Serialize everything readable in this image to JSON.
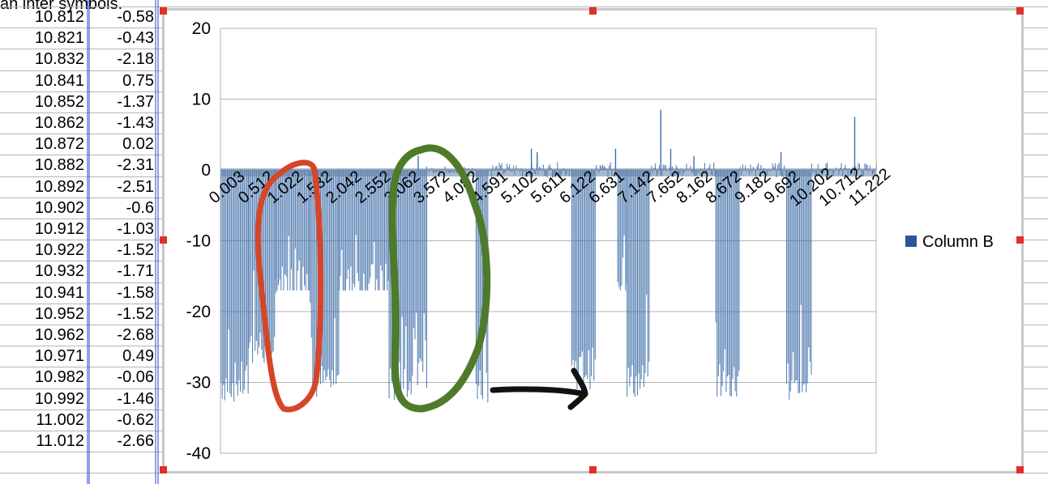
{
  "spreadsheet": {
    "top_text": "an inter symbols.",
    "rows": [
      {
        "a": "10.812",
        "b": "-0.58"
      },
      {
        "a": "10.821",
        "b": "-0.43"
      },
      {
        "a": "10.832",
        "b": "-2.18"
      },
      {
        "a": "10.841",
        "b": "0.75"
      },
      {
        "a": "10.852",
        "b": "-1.37"
      },
      {
        "a": "10.862",
        "b": "-1.43"
      },
      {
        "a": "10.872",
        "b": "0.02"
      },
      {
        "a": "10.882",
        "b": "-2.31"
      },
      {
        "a": "10.892",
        "b": "-2.51"
      },
      {
        "a": "10.902",
        "b": "-0.6"
      },
      {
        "a": "10.912",
        "b": "-1.03"
      },
      {
        "a": "10.922",
        "b": "-1.52"
      },
      {
        "a": "10.932",
        "b": "-1.71"
      },
      {
        "a": "10.941",
        "b": "-1.58"
      },
      {
        "a": "10.952",
        "b": "-1.52"
      },
      {
        "a": "10.962",
        "b": "-2.68"
      },
      {
        "a": "10.971",
        "b": "0.49"
      },
      {
        "a": "10.982",
        "b": "-0.06"
      },
      {
        "a": "10.992",
        "b": "-1.46"
      },
      {
        "a": "11.002",
        "b": "-0.62"
      },
      {
        "a": "11.012",
        "b": "-2.66"
      }
    ]
  },
  "chart_data": {
    "type": "bar",
    "title": "",
    "xlabel": "",
    "ylabel": "",
    "ylim": [
      -40,
      20
    ],
    "yticks": [
      20,
      10,
      0,
      -10,
      -20,
      -30,
      -40
    ],
    "grid": "horizontal",
    "legend": {
      "position": "right",
      "entries": [
        "Column B"
      ]
    },
    "series": [
      {
        "name": "Column B",
        "color": "#3f6fa8"
      }
    ],
    "x_tick_labels": [
      "0.003",
      "0.512",
      "1.022",
      "1.532",
      "2.042",
      "2.552",
      "3.062",
      "3.572",
      "4.082",
      "4.591",
      "5.102",
      "5.611",
      "6.122",
      "6.631",
      "7.142",
      "7.652",
      "8.162",
      "8.672",
      "9.182",
      "9.692",
      "10.202",
      "10.712",
      "11.222"
    ],
    "segments": [
      {
        "x_start": 0.003,
        "x_end": 0.48,
        "approx_min": -33,
        "approx_typical": -30
      },
      {
        "x_start": 0.48,
        "x_end": 0.95,
        "approx_min": -30,
        "approx_typical": -25
      },
      {
        "x_start": 0.95,
        "x_end": 1.54,
        "approx_min": -17,
        "approx_typical": -16
      },
      {
        "x_start": 1.54,
        "x_end": 2.04,
        "approx_min": -32,
        "approx_typical": -30
      },
      {
        "x_start": 2.04,
        "x_end": 2.9,
        "approx_min": -17,
        "approx_typical": -16
      },
      {
        "x_start": 2.9,
        "x_end": 3.55,
        "approx_min": -33,
        "approx_typical": -30
      },
      {
        "x_start": 3.55,
        "x_end": 4.4,
        "approx_min": -1,
        "approx_typical": 0.5
      },
      {
        "x_start": 4.4,
        "x_end": 4.62,
        "approx_min": -33,
        "approx_typical": -30
      },
      {
        "x_start": 4.62,
        "x_end": 6.05,
        "approx_min": -1,
        "approx_typical": 1
      },
      {
        "x_start": 6.05,
        "x_end": 6.47,
        "approx_min": -31,
        "approx_typical": -28
      },
      {
        "x_start": 6.47,
        "x_end": 6.84,
        "approx_min": -1,
        "approx_typical": 1
      },
      {
        "x_start": 6.84,
        "x_end": 7.0,
        "approx_min": -17,
        "approx_typical": -15
      },
      {
        "x_start": 7.0,
        "x_end": 7.4,
        "approx_min": -32,
        "approx_typical": -30
      },
      {
        "x_start": 7.4,
        "x_end": 8.53,
        "approx_min": -1,
        "approx_typical": 1
      },
      {
        "x_start": 8.53,
        "x_end": 8.95,
        "approx_min": -32,
        "approx_typical": -30
      },
      {
        "x_start": 8.95,
        "x_end": 9.75,
        "approx_min": -1,
        "approx_typical": 1
      },
      {
        "x_start": 9.75,
        "x_end": 10.18,
        "approx_min": -33,
        "approx_typical": -30
      },
      {
        "x_start": 10.18,
        "x_end": 11.3,
        "approx_min": -1,
        "approx_typical": 1
      }
    ],
    "spikes": [
      {
        "x": 3.4,
        "value": 2
      },
      {
        "x": 5.35,
        "value": 3
      },
      {
        "x": 5.45,
        "value": 2.5
      },
      {
        "x": 6.8,
        "value": 3
      },
      {
        "x": 7.58,
        "value": 8.5
      },
      {
        "x": 7.75,
        "value": 3
      },
      {
        "x": 8.15,
        "value": 2
      },
      {
        "x": 9.65,
        "value": 2.5
      },
      {
        "x": 10.92,
        "value": 7.5
      }
    ]
  }
}
